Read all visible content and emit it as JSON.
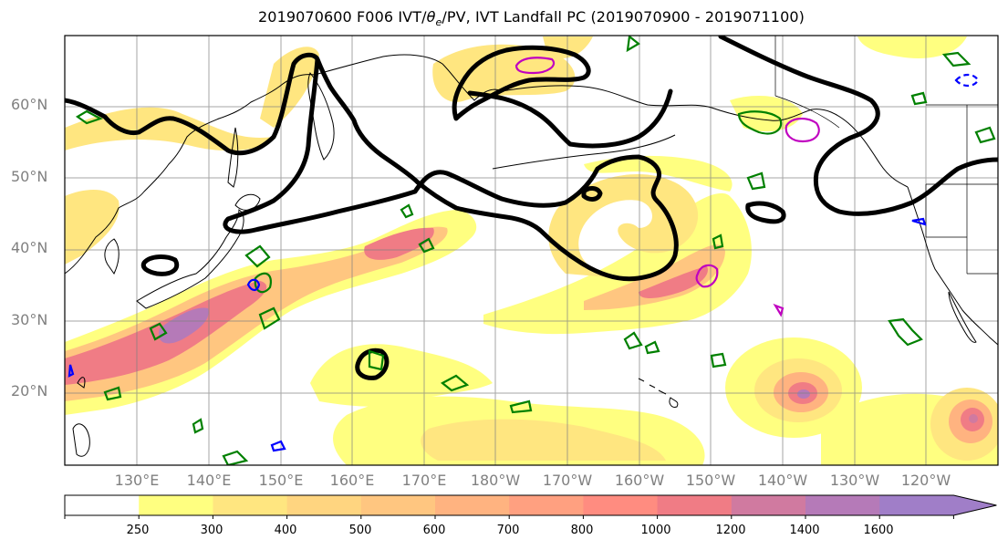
{
  "title": "2019070600 F006 IVT/θe/PV, IVT Landfall PC (2019070900 - 2019071100)",
  "title_parts": {
    "before": "2019070600 F006 IVT/",
    "theta": "θ",
    "sub": "e",
    "after": "/PV, IVT Landfall PC (2019070900 - 2019071100)"
  },
  "lat_labels": [
    "60°N",
    "50°N",
    "40°N",
    "30°N",
    "20°N"
  ],
  "lon_labels": [
    "130°E",
    "140°E",
    "150°E",
    "160°E",
    "170°E",
    "180°W",
    "170°W",
    "160°W",
    "150°W",
    "140°W",
    "130°W",
    "120°W"
  ],
  "colorbar": {
    "labels": [
      "250",
      "300",
      "400",
      "500",
      "600",
      "700",
      "800",
      "1000",
      "1200",
      "1400",
      "1600"
    ],
    "colors": [
      "#ffffff",
      "#ffff80",
      "#ffe680",
      "#ffd580",
      "#ffc680",
      "#ffb380",
      "#ffa080",
      "#ff8c80",
      "#f07c85",
      "#d07aa0",
      "#b57ab8",
      "#a07ec8"
    ],
    "extend": "max"
  },
  "colors": {
    "pv_contour": "#000000",
    "theta_e_contour": "#008000",
    "landfall_blue": "#0000ff",
    "landfall_magenta": "#c000c0",
    "gridline": "#808080",
    "tick_label": "#808080"
  }
}
